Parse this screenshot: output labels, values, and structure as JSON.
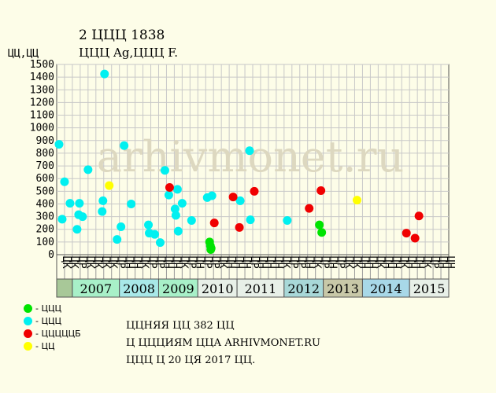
{
  "chart_data": {
    "type": "scatter",
    "title": "2 ЦЦЦ 1838",
    "subtitle": "ЦЦЦ Ag,ЦЦЦ F.",
    "ylabel": "ЦЦ,ЦЦ",
    "ylim": [
      0,
      1500
    ],
    "yticks": [
      0,
      100,
      200,
      300,
      400,
      500,
      600,
      700,
      800,
      900,
      1000,
      1100,
      1200,
      1300,
      1400,
      1500
    ],
    "grid": true,
    "watermark": "arhivmonet.ru",
    "colors": {
      "green": "#00e400",
      "cyan": "#00f0f0",
      "red": "#f00000",
      "yellow": "#ffff00"
    },
    "columns": [
      "ЦК",
      "ЦК",
      "ЦР",
      "ЦК",
      "ЦК",
      "ЦК",
      "ЦК",
      "ЦР",
      "ЦН",
      "ЦН",
      "ЦК",
      "ЦР",
      "ЦР",
      "ЦН",
      "ЦН",
      "ЦК",
      "ЦР",
      "ЦН",
      "ЦР",
      "ЦР",
      "ЦК",
      "ЦН",
      "ЦН",
      "ЦН",
      "ЦР",
      "ЦН",
      "ЦН",
      "ЦН",
      "ЦК",
      "ЦР",
      "ЦР",
      "ЦН",
      "ЦК",
      "ЦР",
      "ЦН",
      "ЦР",
      "ЦК",
      "ЦК",
      "ЦН",
      "ЦН",
      "ЦК",
      "ЦН",
      "ЦН",
      "ЦК",
      "ЦН",
      "ЦН",
      "ЦК",
      "ЦР",
      "ЦН",
      "ЦН"
    ],
    "years": [
      {
        "label": "",
        "span": [
          0,
          2
        ],
        "color": "#a8c898"
      },
      {
        "label": "2007",
        "span": [
          2,
          8
        ],
        "color": "#a8f0c8"
      },
      {
        "label": "2008",
        "span": [
          8,
          13
        ],
        "color": "#a8e8e8"
      },
      {
        "label": "2009",
        "span": [
          13,
          18
        ],
        "color": "#a8f0c8"
      },
      {
        "label": "2010",
        "span": [
          18,
          23
        ],
        "color": "#e8f0e8"
      },
      {
        "label": "2011",
        "span": [
          23,
          29
        ],
        "color": "#e8f0e8"
      },
      {
        "label": "2012",
        "span": [
          29,
          34
        ],
        "color": "#a8d8d8"
      },
      {
        "label": "2013",
        "span": [
          34,
          39
        ],
        "color": "#c8c8a8"
      },
      {
        "label": "2014",
        "span": [
          39,
          45
        ],
        "color": "#a8d8e8"
      },
      {
        "label": "2015",
        "span": [
          45,
          50
        ],
        "color": "#e8f0e8"
      }
    ],
    "series": [
      {
        "name": "- ЦЦЦ",
        "color": "#00e400",
        "points": [
          [
            19.5,
            100
          ],
          [
            19.6,
            70
          ],
          [
            19.7,
            50
          ],
          [
            19.65,
            40
          ],
          [
            33.5,
            235
          ],
          [
            33.8,
            175
          ]
        ]
      },
      {
        "name": "- ЦЦЦ",
        "color": "#00f0f0",
        "points": [
          [
            0.3,
            870
          ],
          [
            0.7,
            280
          ],
          [
            1.0,
            575
          ],
          [
            1.7,
            405
          ],
          [
            2.6,
            200
          ],
          [
            2.9,
            405
          ],
          [
            2.8,
            315
          ],
          [
            3.3,
            300
          ],
          [
            4.0,
            670
          ],
          [
            5.8,
            340
          ],
          [
            5.9,
            425
          ],
          [
            6.1,
            1425
          ],
          [
            7.7,
            120
          ],
          [
            8.2,
            220
          ],
          [
            8.6,
            860
          ],
          [
            9.5,
            400
          ],
          [
            11.7,
            235
          ],
          [
            11.8,
            170
          ],
          [
            12.5,
            160
          ],
          [
            13.2,
            95
          ],
          [
            13.8,
            665
          ],
          [
            14.3,
            470
          ],
          [
            15.1,
            360
          ],
          [
            15.2,
            310
          ],
          [
            15.4,
            515
          ],
          [
            15.5,
            185
          ],
          [
            16.0,
            405
          ],
          [
            17.2,
            270
          ],
          [
            19.2,
            450
          ],
          [
            19.8,
            465
          ],
          [
            23.4,
            425
          ],
          [
            24.6,
            820
          ],
          [
            24.7,
            275
          ],
          [
            29.4,
            270
          ]
        ]
      },
      {
        "name": "- ЦЦЦЦЦБ",
        "color": "#f00000",
        "points": [
          [
            14.4,
            530
          ],
          [
            20.1,
            250
          ],
          [
            22.5,
            455
          ],
          [
            23.3,
            215
          ],
          [
            25.2,
            500
          ],
          [
            32.2,
            365
          ],
          [
            33.7,
            505
          ],
          [
            44.6,
            170
          ],
          [
            45.7,
            130
          ],
          [
            46.2,
            305
          ]
        ]
      },
      {
        "name": "- ЦЦ",
        "color": "#ffff00",
        "points": [
          [
            6.7,
            545
          ],
          [
            38.3,
            430
          ]
        ]
      }
    ]
  },
  "info": {
    "line1": "ЦЦНЯЯ ЦЦ 382 ЦЦ",
    "line2": "Ц ЦЦЦИЯМ ЦЦА ARHIVMONET.RU",
    "line3": "ЦЦЦ Ц 20 ЦЯ 2017 ЦЦ."
  }
}
